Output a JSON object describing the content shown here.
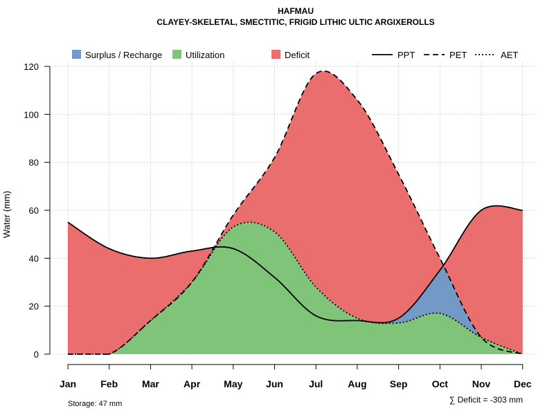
{
  "chart_data": {
    "type": "area",
    "title": "HAFMAU",
    "subtitle": "CLAYEY-SKELETAL, SMECTITIC, FRIGID LITHIC ULTIC ARGIXEROLLS",
    "xlabel": "",
    "ylabel": "Water (mm)",
    "ylim": [
      0,
      120
    ],
    "yticks": [
      0,
      20,
      40,
      60,
      80,
      100,
      120
    ],
    "categories": [
      "Jan",
      "Feb",
      "Mar",
      "Apr",
      "May",
      "Jun",
      "Jul",
      "Aug",
      "Sep",
      "Oct",
      "Nov",
      "Dec"
    ],
    "grid": true,
    "series": [
      {
        "name": "PPT",
        "style": "solid",
        "values": [
          55,
          44,
          40,
          43,
          44,
          32,
          16,
          14,
          15,
          35,
          60,
          60
        ]
      },
      {
        "name": "PET",
        "style": "dashed",
        "values": [
          0,
          0,
          14,
          30,
          58,
          82,
          117,
          106,
          75,
          40,
          7,
          0
        ]
      },
      {
        "name": "AET",
        "style": "dotted",
        "values": [
          0,
          0,
          14,
          30,
          53,
          51,
          28,
          15,
          13,
          17,
          7,
          0
        ]
      }
    ],
    "areas": [
      {
        "name": "Surplus / Recharge",
        "color": "#7399c6"
      },
      {
        "name": "Utilization",
        "color": "#80c47a"
      },
      {
        "name": "Deficit",
        "color": "#eb6e6e"
      }
    ],
    "legend_position": "top",
    "annotations": {
      "storage": "Storage: 47 mm",
      "deficit": "∑ Deficit = -303 mm"
    }
  }
}
